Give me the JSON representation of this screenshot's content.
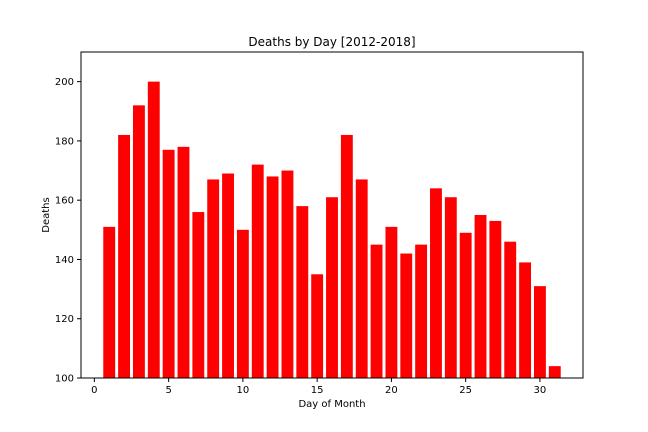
{
  "chart_data": {
    "type": "bar",
    "title": "Deaths by Day [2012-2018]",
    "xlabel": "Day of Month",
    "ylabel": "Deaths",
    "x": [
      1,
      2,
      3,
      4,
      5,
      6,
      7,
      8,
      9,
      10,
      11,
      12,
      13,
      14,
      15,
      16,
      17,
      18,
      19,
      20,
      21,
      22,
      23,
      24,
      25,
      26,
      27,
      28,
      29,
      30,
      31
    ],
    "values": [
      151,
      182,
      192,
      200,
      177,
      178,
      156,
      167,
      169,
      150,
      172,
      168,
      170,
      158,
      135,
      161,
      182,
      167,
      145,
      151,
      142,
      145,
      164,
      161,
      149,
      155,
      153,
      146,
      139,
      131,
      104
    ],
    "xlim": [
      -0.9,
      32.9
    ],
    "ylim": [
      100,
      210
    ],
    "xticks": [
      "0",
      "5",
      "10",
      "15",
      "20",
      "25",
      "30"
    ],
    "yticks": [
      "100",
      "120",
      "140",
      "160",
      "180",
      "200"
    ],
    "bar_color": "#ff0000",
    "grid": false
  }
}
